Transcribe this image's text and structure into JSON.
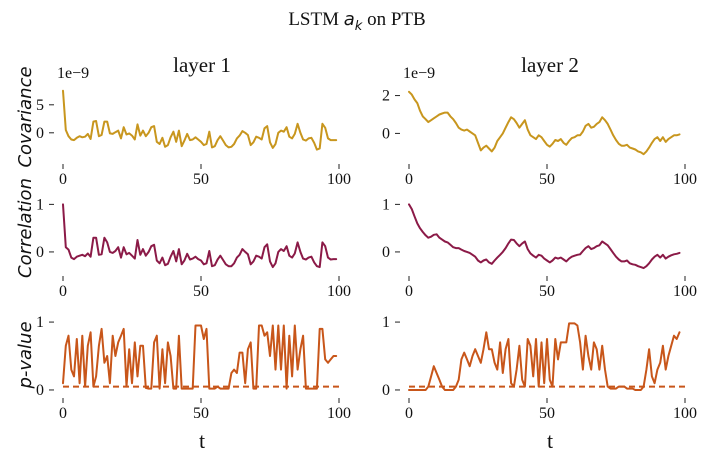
{
  "figure": {
    "title_prefix": "LSTM",
    "title_var": "a",
    "title_sub": "k",
    "title_suffix": "on PTB",
    "xlabel": "t"
  },
  "columns": [
    "layer 1",
    "layer 2"
  ],
  "rows": [
    {
      "ylabel": "Covariance"
    },
    {
      "ylabel": "Correlation"
    },
    {
      "ylabel": "p-value"
    }
  ],
  "colors": {
    "covariance": "#c8961e",
    "correlation": "#8b1a47",
    "pvalue": "#c8561a"
  },
  "chart_data": [
    {
      "type": "line",
      "panel": "layer1-covariance",
      "title": "layer 1",
      "ylabel": "Covariance",
      "offset_label": "1e−9",
      "xlim": [
        0,
        100
      ],
      "ylim": [
        -4.5,
        8
      ],
      "xticks": [
        0,
        50,
        100
      ],
      "yticks": [
        0,
        5
      ],
      "series": [
        {
          "values": [
            7.5,
            0.5,
            -0.6,
            -1.2,
            -1.3,
            -0.9,
            -0.6,
            -0.8,
            -0.7,
            -0.2,
            -1.1,
            2.0,
            2.1,
            -0.6,
            -0.4,
            2.0,
            2.0,
            -0.1,
            -0.2,
            0.1,
            0.4,
            -1.0,
            1.0,
            -0.3,
            -0.1,
            -0.5,
            -1.2,
            1.5,
            -0.5,
            0.4,
            -0.6,
            0.0,
            1.0,
            1.2,
            -1.6,
            -2.0,
            -0.9,
            -2.5,
            -2.2,
            -0.8,
            0.2,
            -1.6,
            0.4,
            -2.4,
            -1.4,
            -0.2,
            -1.3,
            -1.2,
            -0.8,
            -1.2,
            -1.6,
            -2.2,
            -2.0,
            0.2,
            -2.6,
            -2.4,
            -1.3,
            -0.6,
            -1.4,
            -2.2,
            -2.6,
            -2.5,
            -2.0,
            -1.0,
            -0.5,
            0.3,
            0.0,
            -0.4,
            -2.2,
            -1.7,
            -0.7,
            -0.9,
            -1.2,
            0.8,
            1.2,
            -1.7,
            -2.7,
            -2.0,
            0.0,
            0.4,
            0.2,
            1.0,
            -0.7,
            -1.0,
            -0.2,
            1.6,
            0.0,
            -1.2,
            -1.4,
            -1.0,
            -0.9,
            -1.8,
            -3.0,
            -2.8,
            1.6,
            0.9,
            -1.0,
            -1.3,
            -1.3,
            -1.3
          ]
        }
      ]
    },
    {
      "type": "line",
      "panel": "layer2-covariance",
      "title": "layer 2",
      "ylabel": "",
      "offset_label": "1e−9",
      "xlim": [
        0,
        100
      ],
      "ylim": [
        -1.3,
        2.4
      ],
      "xticks": [
        0,
        50,
        100
      ],
      "yticks": [
        0,
        2
      ],
      "series": [
        {
          "values": [
            2.2,
            2.05,
            1.8,
            1.6,
            1.2,
            0.9,
            0.75,
            0.6,
            0.7,
            0.8,
            0.9,
            1.0,
            1.05,
            1.1,
            1.1,
            0.9,
            0.75,
            0.55,
            0.3,
            0.2,
            0.15,
            0.2,
            0.1,
            0.0,
            -0.1,
            -0.5,
            -0.9,
            -0.75,
            -0.65,
            -0.8,
            -0.95,
            -0.75,
            -0.4,
            -0.2,
            0.0,
            0.3,
            0.6,
            0.85,
            0.75,
            0.55,
            0.3,
            0.5,
            0.7,
            0.2,
            -0.1,
            -0.2,
            -0.3,
            -0.1,
            -0.2,
            -0.4,
            -0.6,
            -0.7,
            -0.55,
            -0.35,
            -0.4,
            -0.3,
            -0.5,
            -0.6,
            -0.4,
            -0.25,
            -0.2,
            -0.1,
            -0.1,
            0.1,
            0.4,
            0.5,
            0.3,
            0.35,
            0.5,
            0.6,
            0.85,
            0.7,
            0.5,
            0.2,
            -0.1,
            -0.35,
            -0.55,
            -0.65,
            -0.65,
            -0.6,
            -0.75,
            -0.8,
            -0.85,
            -0.95,
            -1.0,
            -1.1,
            -0.95,
            -0.75,
            -0.5,
            -0.3,
            -0.2,
            -0.4,
            -0.2,
            -0.45,
            -0.3,
            -0.2,
            -0.1,
            -0.1,
            -0.05
          ]
        }
      ]
    },
    {
      "type": "line",
      "panel": "layer1-correlation",
      "title": "",
      "ylabel": "Correlation",
      "xlim": [
        0,
        100
      ],
      "ylim": [
        -0.38,
        1.05
      ],
      "xticks": [
        0,
        50,
        100
      ],
      "yticks": [
        0,
        1
      ],
      "series": [
        {
          "values": [
            1.0,
            0.1,
            0.05,
            -0.12,
            -0.15,
            -0.1,
            -0.08,
            -0.06,
            -0.09,
            -0.03,
            -0.1,
            0.3,
            0.3,
            -0.06,
            -0.05,
            0.3,
            0.2,
            0.0,
            -0.02,
            0.02,
            0.1,
            -0.12,
            0.1,
            -0.05,
            -0.02,
            -0.08,
            -0.14,
            0.25,
            -0.06,
            0.06,
            -0.08,
            0.0,
            0.12,
            0.15,
            -0.18,
            -0.24,
            -0.12,
            -0.28,
            -0.25,
            -0.1,
            0.02,
            -0.2,
            0.06,
            -0.26,
            -0.18,
            -0.04,
            -0.16,
            -0.14,
            -0.1,
            -0.15,
            -0.18,
            -0.26,
            -0.24,
            0.02,
            -0.3,
            -0.28,
            -0.16,
            -0.08,
            -0.17,
            -0.26,
            -0.3,
            -0.3,
            -0.24,
            -0.12,
            -0.06,
            0.06,
            0.0,
            -0.05,
            -0.26,
            -0.2,
            -0.08,
            -0.1,
            -0.14,
            0.1,
            0.16,
            -0.2,
            -0.32,
            -0.24,
            0.0,
            0.06,
            0.02,
            0.12,
            -0.08,
            -0.12,
            -0.03,
            0.2,
            0.0,
            -0.14,
            -0.16,
            -0.12,
            -0.1,
            -0.22,
            -0.3,
            -0.32,
            0.2,
            0.12,
            -0.12,
            -0.16,
            -0.15,
            -0.15
          ]
        }
      ]
    },
    {
      "type": "line",
      "panel": "layer2-correlation",
      "title": "",
      "ylabel": "",
      "xlim": [
        0,
        100
      ],
      "ylim": [
        -0.38,
        1.05
      ],
      "xticks": [
        0,
        50,
        100
      ],
      "yticks": [
        0,
        1
      ],
      "series": [
        {
          "values": [
            1.0,
            0.9,
            0.75,
            0.6,
            0.5,
            0.42,
            0.35,
            0.3,
            0.32,
            0.36,
            0.37,
            0.3,
            0.26,
            0.22,
            0.2,
            0.15,
            0.1,
            0.08,
            0.08,
            0.05,
            0.02,
            0.0,
            -0.02,
            -0.06,
            -0.1,
            -0.18,
            -0.22,
            -0.18,
            -0.16,
            -0.22,
            -0.25,
            -0.18,
            -0.12,
            -0.06,
            0.0,
            0.08,
            0.18,
            0.26,
            0.25,
            0.18,
            0.12,
            0.18,
            0.22,
            0.06,
            -0.03,
            -0.08,
            -0.12,
            -0.06,
            -0.08,
            -0.14,
            -0.18,
            -0.22,
            -0.18,
            -0.12,
            -0.14,
            -0.12,
            -0.16,
            -0.2,
            -0.14,
            -0.1,
            -0.08,
            -0.06,
            -0.05,
            0.02,
            0.08,
            0.12,
            0.06,
            0.08,
            0.12,
            0.14,
            0.22,
            0.18,
            0.14,
            0.06,
            -0.02,
            -0.1,
            -0.16,
            -0.2,
            -0.2,
            -0.18,
            -0.24,
            -0.26,
            -0.27,
            -0.3,
            -0.32,
            -0.34,
            -0.3,
            -0.24,
            -0.16,
            -0.1,
            -0.06,
            -0.12,
            -0.06,
            -0.14,
            -0.1,
            -0.07,
            -0.05,
            -0.04,
            -0.02
          ]
        }
      ]
    },
    {
      "type": "line",
      "panel": "layer1-pvalue",
      "title": "",
      "ylabel": "p-value",
      "xlim": [
        0,
        100
      ],
      "ylim": [
        -0.03,
        1.06
      ],
      "xticks": [
        0,
        50,
        100
      ],
      "yticks": [
        0,
        1
      ],
      "threshold": 0.05,
      "series": [
        {
          "values": [
            0.1,
            0.65,
            0.8,
            0.3,
            0.2,
            0.75,
            0.1,
            0.8,
            0.05,
            0.65,
            0.85,
            0.05,
            0.2,
            0.65,
            0.9,
            0.4,
            0.5,
            0.1,
            0.8,
            0.5,
            0.7,
            0.8,
            0.9,
            0.05,
            0.6,
            0.1,
            0.7,
            0.2,
            0.65,
            0.65,
            0.03,
            0.02,
            0.02,
            0.7,
            0.8,
            0.02,
            0.6,
            0.1,
            0.7,
            0.5,
            0.02,
            0.02,
            0.8,
            0.02,
            0.02,
            0.02,
            0.02,
            0.02,
            0.95,
            0.95,
            0.95,
            0.75,
            0.9,
            0.02,
            0.02,
            0.02,
            0.05,
            0.02,
            0.02,
            0.02,
            0.02,
            0.25,
            0.3,
            0.25,
            0.55,
            0.55,
            0.1,
            0.6,
            0.7,
            0.02,
            0.02,
            0.95,
            0.95,
            0.8,
            0.85,
            0.5,
            0.95,
            0.3,
            0.95,
            0.3,
            0.95,
            0.02,
            0.8,
            0.2,
            0.95,
            0.3,
            0.6,
            0.8,
            0.02,
            0.02,
            0.02,
            0.02,
            0.02,
            0.9,
            0.9,
            0.45,
            0.4,
            0.45,
            0.5,
            0.5
          ]
        }
      ]
    },
    {
      "type": "line",
      "panel": "layer2-pvalue",
      "title": "",
      "ylabel": "",
      "xlim": [
        0,
        100
      ],
      "ylim": [
        -0.03,
        1.06
      ],
      "xticks": [
        0,
        50,
        100
      ],
      "yticks": [
        0,
        1
      ],
      "threshold": 0.05,
      "series": [
        {
          "values": [
            0.0,
            0.0,
            0.0,
            0.0,
            0.0,
            0.0,
            0.0,
            0.05,
            0.2,
            0.35,
            0.25,
            0.15,
            0.05,
            0.0,
            0.0,
            0.0,
            0.0,
            0.05,
            0.15,
            0.45,
            0.55,
            0.45,
            0.35,
            0.5,
            0.6,
            0.5,
            0.4,
            0.6,
            0.85,
            0.6,
            0.6,
            0.4,
            0.3,
            0.7,
            0.25,
            0.6,
            0.75,
            0.1,
            0.05,
            0.3,
            0.65,
            0.15,
            0.05,
            0.75,
            0.65,
            0.2,
            0.75,
            0.05,
            0.7,
            0.1,
            0.75,
            0.15,
            0.05,
            0.75,
            0.45,
            0.7,
            0.7,
            0.7,
            0.98,
            0.98,
            0.98,
            0.95,
            0.7,
            0.3,
            0.8,
            0.5,
            0.3,
            0.7,
            0.6,
            0.3,
            0.65,
            0.3,
            0.05,
            0.02,
            0.02,
            0.02,
            0.05,
            0.05,
            0.05,
            0.02,
            0.02,
            0.02,
            0.0,
            0.0,
            0.0,
            0.05,
            0.3,
            0.6,
            0.2,
            0.1,
            0.3,
            0.4,
            0.65,
            0.3,
            0.5,
            0.65,
            0.8,
            0.75,
            0.85
          ]
        }
      ]
    }
  ]
}
